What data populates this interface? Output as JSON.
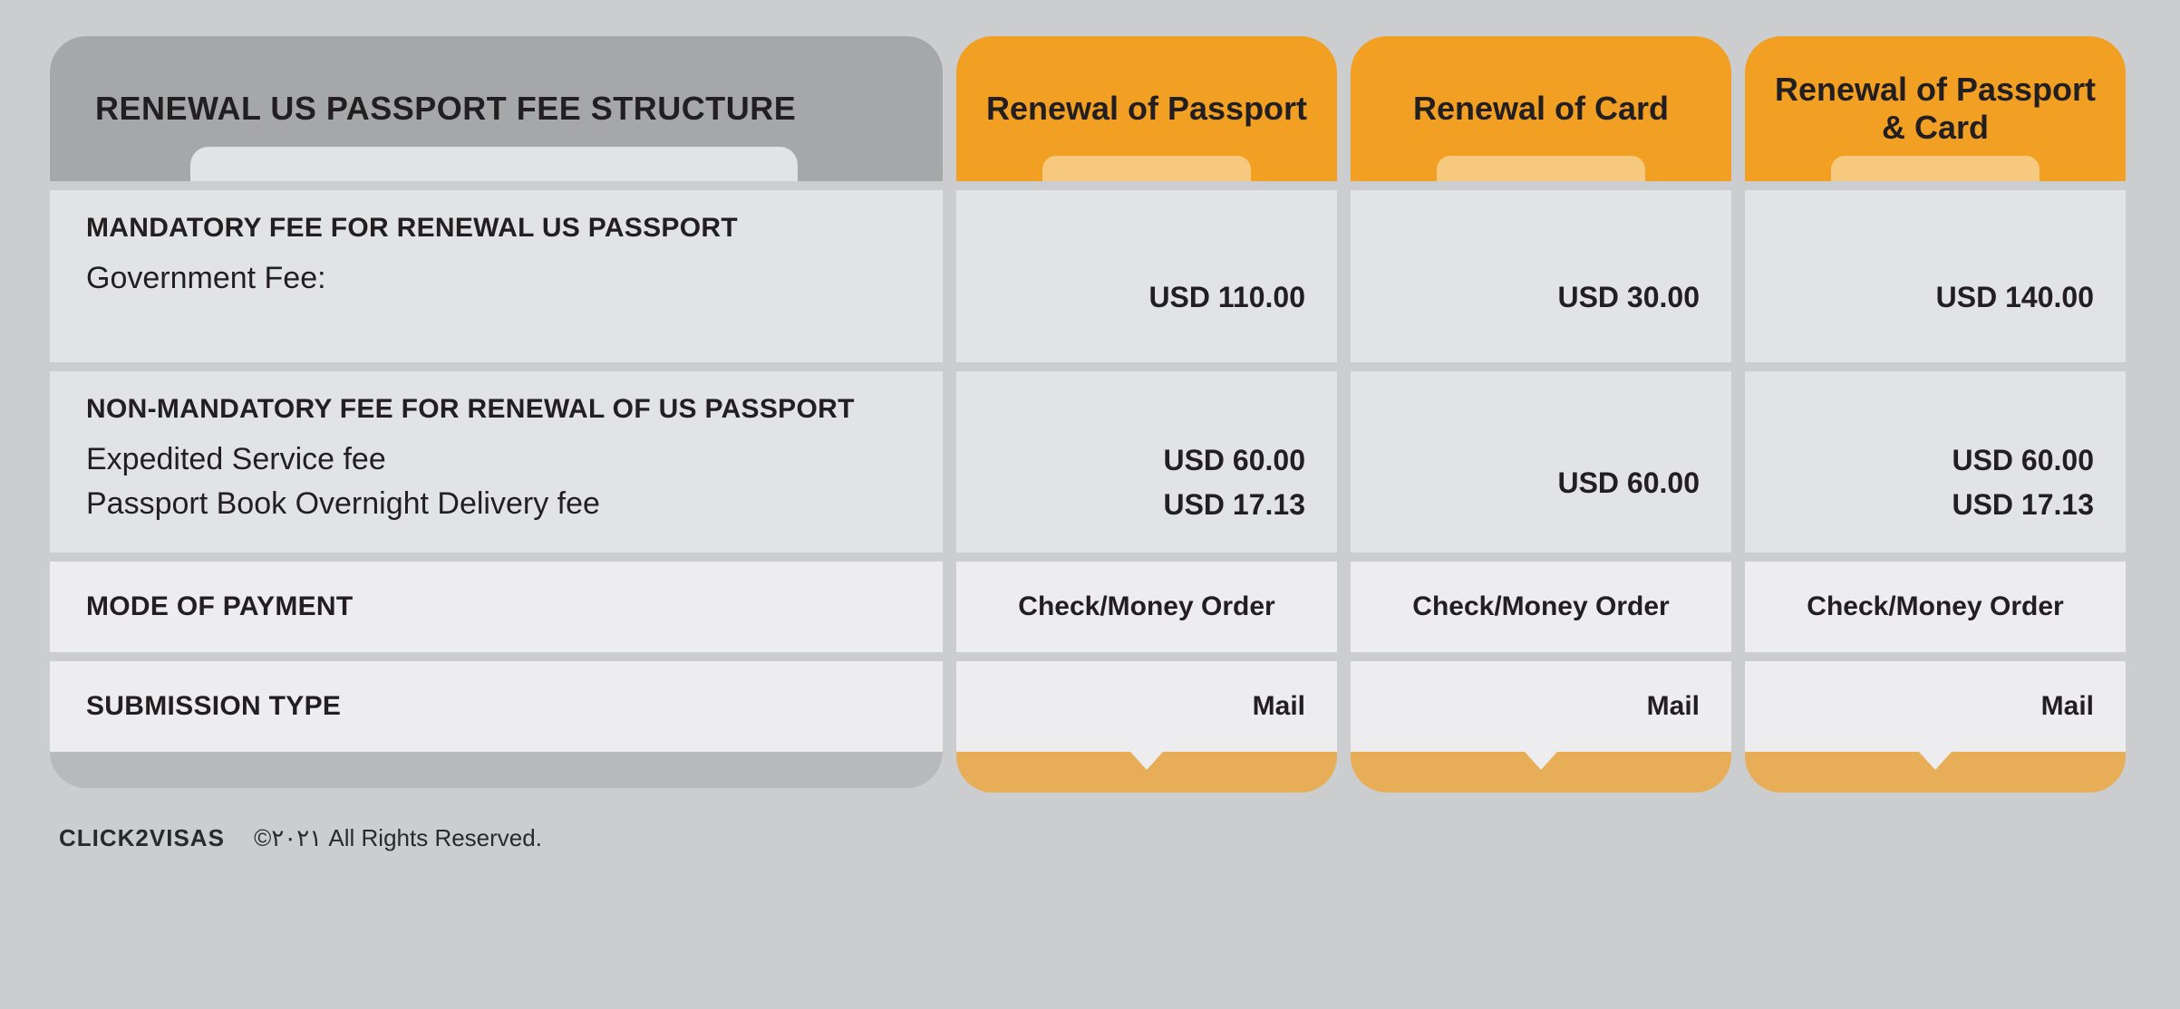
{
  "colors": {
    "page_bg": "#cccdce",
    "header_grey": "#a6a7a9",
    "row_bg": "#e2e3e5",
    "row_bg_alt": "#ededef",
    "orange": "#f2a024",
    "orange_light": "#f6c97e",
    "orange_mid": "#e7ad57",
    "text": "#231f20",
    "footer_bar": "#b8b9bb"
  },
  "header": {
    "title": "RENEWAL US PASSPORT FEE STRUCTURE",
    "columns": [
      "Renewal of Passport",
      "Renewal of Card",
      "Renewal of Passport & Card"
    ]
  },
  "sections": [
    {
      "title": "MANDATORY FEE FOR RENEWAL US PASSPORT",
      "rows": [
        {
          "label": "Government Fee:",
          "values": [
            "USD 110.00",
            "USD 30.00",
            "USD 140.00"
          ]
        }
      ]
    },
    {
      "title": "NON-MANDATORY FEE FOR RENEWAL OF US PASSPORT",
      "rows": [
        {
          "label": "Expedited Service fee",
          "values": [
            "USD 60.00",
            "USD 60.00",
            "USD 60.00"
          ]
        },
        {
          "label": "Passport Book Overnight Delivery fee",
          "values": [
            "USD 17.13",
            "",
            "USD 17.13"
          ]
        }
      ]
    },
    {
      "title": "MODE OF PAYMENT",
      "rows": [
        {
          "label": "",
          "values": [
            "Check/Money Order",
            "Check/Money Order",
            "Check/Money Order"
          ]
        }
      ]
    },
    {
      "title": "SUBMISSION TYPE",
      "rows": [
        {
          "label": "",
          "values": [
            "Mail",
            "Mail",
            "Mail"
          ]
        }
      ]
    }
  ],
  "footer": {
    "brand": "CLICK2VISAS",
    "copyright": "©٢٠٢١ All Rights Reserved."
  }
}
